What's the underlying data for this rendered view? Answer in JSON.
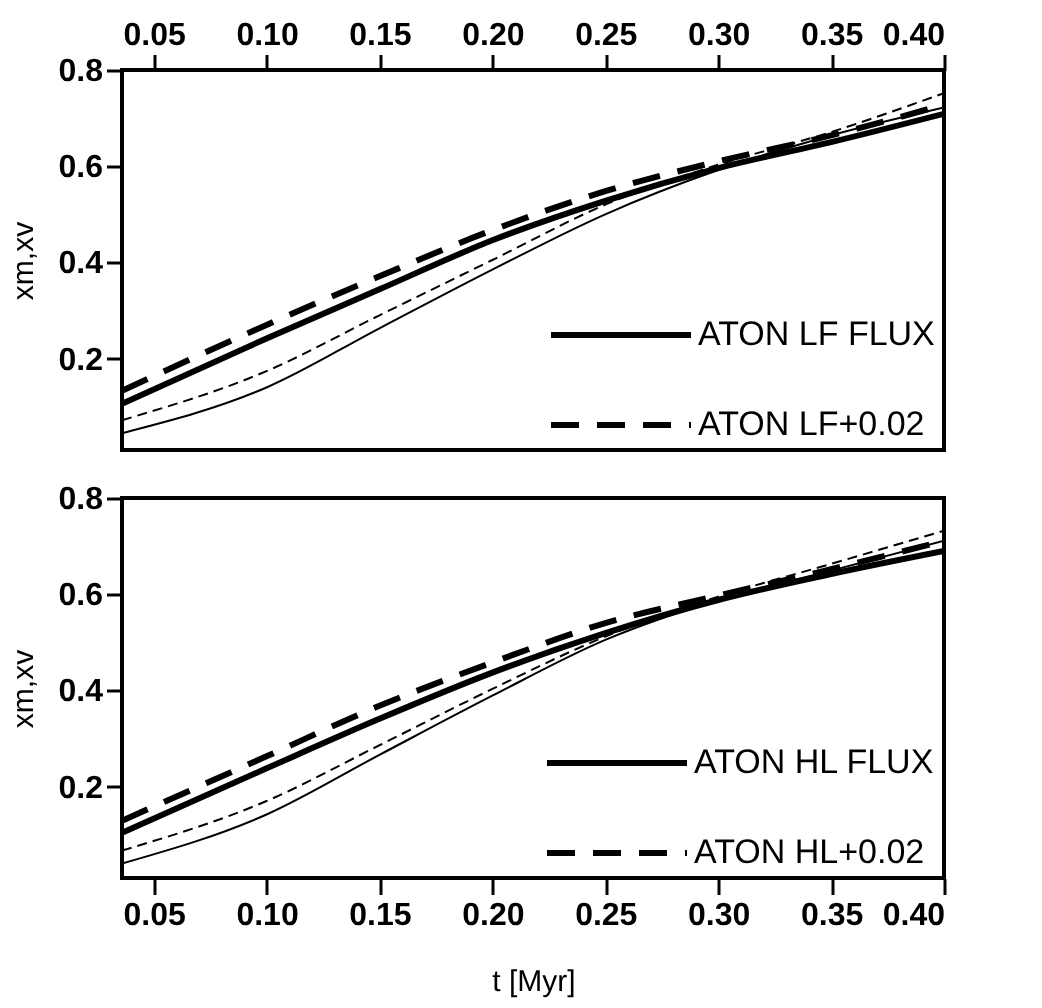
{
  "chart_data": [
    {
      "type": "line",
      "ylabel": "xm,xv",
      "x": [
        0.036,
        0.1,
        0.15,
        0.2,
        0.25,
        0.3,
        0.35,
        0.4
      ],
      "xlim": [
        0.036,
        0.4
      ],
      "xticks": [
        0.05,
        {
          "value": 0.1,
          "label": "0.10"
        },
        0.15,
        {
          "value": 0.2,
          "label": "0.20"
        },
        0.25,
        {
          "value": 0.3,
          "label": "0.30"
        },
        0.35,
        {
          "value": 0.4,
          "label": "0.40"
        }
      ],
      "ylim": [
        0.01,
        0.8
      ],
      "yticks": [
        0.2,
        0.4,
        0.6,
        0.8
      ],
      "legend": "bottom right",
      "series": [
        {
          "name": "ATON LF FLUX",
          "color": "#000000",
          "line_style": "solid",
          "values": [
            0.106,
            0.242,
            0.344,
            0.446,
            0.528,
            0.596,
            0.65,
            0.709
          ]
        },
        {
          "name": "ATON LF+0.02",
          "color": "#000000",
          "line_style": "dashed",
          "values": [
            0.133,
            0.27,
            0.371,
            0.467,
            0.548,
            0.61,
            0.664,
            0.728
          ]
        },
        {
          "color": "#000000",
          "line_style": "solid",
          "values": [
            0.045,
            0.14,
            0.263,
            0.385,
            0.5,
            0.592,
            0.664,
            0.722
          ]
        },
        {
          "color": "#000000",
          "line_style": "dashed",
          "values": [
            0.072,
            0.174,
            0.29,
            0.405,
            0.52,
            0.603,
            0.671,
            0.752
          ]
        }
      ]
    },
    {
      "type": "line",
      "ylabel": "xm,xv",
      "xlabel": "t [Myr]",
      "x": [
        0.036,
        0.1,
        0.15,
        0.2,
        0.25,
        0.3,
        0.35,
        0.4
      ],
      "xlim": [
        0.036,
        0.4
      ],
      "xticks": [
        0.05,
        {
          "value": 0.1,
          "label": "0.10"
        },
        0.15,
        {
          "value": 0.2,
          "label": "0.20"
        },
        0.25,
        {
          "value": 0.3,
          "label": "0.30"
        },
        0.35,
        {
          "value": 0.4,
          "label": "0.40"
        }
      ],
      "ylim": [
        0.01,
        0.8
      ],
      "yticks": [
        0.2,
        0.4,
        0.6,
        0.8
      ],
      "legend": "bottom right",
      "series": [
        {
          "name": "ATON HL FLUX",
          "color": "#000000",
          "line_style": "solid",
          "values": [
            0.104,
            0.238,
            0.341,
            0.437,
            0.519,
            0.588,
            0.642,
            0.69
          ]
        },
        {
          "name": "ATON HL+0.02",
          "color": "#000000",
          "line_style": "dashed",
          "values": [
            0.129,
            0.263,
            0.368,
            0.458,
            0.54,
            0.597,
            0.652,
            0.711
          ]
        },
        {
          "color": "#000000",
          "line_style": "solid",
          "values": [
            0.04,
            0.142,
            0.266,
            0.389,
            0.505,
            0.588,
            0.649,
            0.711
          ]
        },
        {
          "color": "#000000",
          "line_style": "dashed",
          "values": [
            0.067,
            0.17,
            0.286,
            0.403,
            0.512,
            0.595,
            0.663,
            0.732
          ]
        }
      ]
    }
  ]
}
